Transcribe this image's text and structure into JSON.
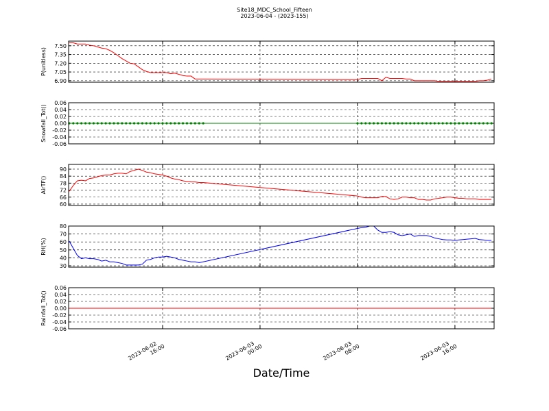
{
  "chart_data": {
    "type": "line",
    "title": "Site18_MDC_School_Fifteen",
    "subtitle": "2023-06-04 - (2023-155)",
    "xlabel": "Date/Time",
    "xlim": [
      "2023-06-02 08:17",
      "2023-06-03 19:13"
    ],
    "xticks": [
      {
        "value": "2023-06-02 16:00",
        "label": [
          "2023-06-02",
          "16:00"
        ]
      },
      {
        "value": "2023-06-03 00:00",
        "label": [
          "2023-06-03",
          "00:00"
        ]
      },
      {
        "value": "2023-06-03 08:00",
        "label": [
          "2023-06-03",
          "08:00"
        ]
      },
      {
        "value": "2023-06-03 16:00",
        "label": [
          "2023-06-03",
          "16:00"
        ]
      }
    ],
    "grid": true,
    "x": [
      "2023-06-02 08:20",
      "2023-06-02 08:40",
      "2023-06-02 09:00",
      "2023-06-02 09:20",
      "2023-06-02 09:40",
      "2023-06-02 10:00",
      "2023-06-02 10:20",
      "2023-06-02 10:40",
      "2023-06-02 11:00",
      "2023-06-02 11:20",
      "2023-06-02 11:40",
      "2023-06-02 12:00",
      "2023-06-02 12:20",
      "2023-06-02 12:40",
      "2023-06-02 13:00",
      "2023-06-02 13:20",
      "2023-06-02 13:40",
      "2023-06-02 14:00",
      "2023-06-02 14:20",
      "2023-06-02 14:40",
      "2023-06-02 15:00",
      "2023-06-02 15:20",
      "2023-06-02 15:40",
      "2023-06-02 16:00",
      "2023-06-02 16:20",
      "2023-06-02 16:40",
      "2023-06-02 17:00",
      "2023-06-02 17:20",
      "2023-06-02 17:40",
      "2023-06-02 18:00",
      "2023-06-02 18:20",
      "2023-06-02 18:40",
      "2023-06-02 19:00",
      "2023-06-02 19:20",
      "2023-06-03 08:00",
      "2023-06-03 08:20",
      "2023-06-03 08:40",
      "2023-06-03 09:00",
      "2023-06-03 09:20",
      "2023-06-03 09:40",
      "2023-06-03 10:00",
      "2023-06-03 10:20",
      "2023-06-03 10:40",
      "2023-06-03 11:00",
      "2023-06-03 11:20",
      "2023-06-03 11:40",
      "2023-06-03 12:00",
      "2023-06-03 12:20",
      "2023-06-03 12:40",
      "2023-06-03 13:00",
      "2023-06-03 13:20",
      "2023-06-03 13:40",
      "2023-06-03 14:00",
      "2023-06-03 14:20",
      "2023-06-03 14:40",
      "2023-06-03 15:00",
      "2023-06-03 15:20",
      "2023-06-03 15:40",
      "2023-06-03 16:00",
      "2023-06-03 16:20",
      "2023-06-03 16:40",
      "2023-06-03 17:00",
      "2023-06-03 17:20",
      "2023-06-03 17:40",
      "2023-06-03 18:00",
      "2023-06-03 18:20",
      "2023-06-03 18:40",
      "2023-06-03 19:00"
    ],
    "panels": [
      {
        "ylabel": "P(unitless)",
        "ylim": [
          6.875,
          7.58
        ],
        "yticks": [
          {
            "value": 6.9,
            "label": "6.90"
          },
          7.05,
          {
            "value": 7.2,
            "label": "7.20"
          },
          7.35,
          {
            "value": 7.5,
            "label": "7.50"
          }
        ],
        "series": [
          {
            "color": "#ff0000",
            "marker": null,
            "values": [
              7.55,
              7.55,
              7.53,
              7.53,
              7.53,
              7.51,
              7.5,
              7.48,
              7.46,
              7.45,
              7.42,
              7.38,
              7.33,
              7.28,
              7.24,
              7.2,
              7.19,
              7.14,
              7.09,
              7.06,
              7.04,
              7.04,
              7.04,
              7.04,
              7.04,
              7.02,
              7.03,
              7.01,
              6.99,
              6.98,
              6.98,
              6.93,
              6.93,
              6.93,
              6.92,
              6.94,
              6.94,
              6.94,
              6.94,
              6.94,
              6.9,
              6.96,
              6.94,
              6.94,
              6.94,
              6.94,
              6.93,
              6.93,
              6.9,
              6.9,
              6.9,
              6.9,
              6.9,
              6.9,
              6.89,
              6.89,
              6.89,
              6.89,
              6.89,
              6.89,
              6.89,
              6.89,
              6.89,
              6.89,
              6.9,
              6.9,
              6.91,
              6.93
            ]
          }
        ]
      },
      {
        "ylabel": "Snowfall_Tot()",
        "ylim": [
          -0.06,
          0.06
        ],
        "yticks": [
          -0.06,
          -0.04,
          -0.02,
          {
            "value": 0,
            "label": "0.00"
          },
          0.02,
          0.04,
          0.06
        ],
        "series": [
          {
            "color": "#008000",
            "marker": "o",
            "values": [
              0,
              0,
              0,
              0,
              0,
              0,
              0,
              0,
              0,
              0,
              0,
              0,
              0,
              0,
              0,
              0,
              0,
              0,
              0,
              0,
              0,
              0,
              0,
              0,
              0,
              0,
              0,
              0,
              0,
              0,
              0,
              0,
              0,
              0,
              0,
              0,
              0,
              0,
              0,
              0,
              0,
              0,
              0,
              0,
              0,
              0,
              0,
              0,
              0,
              0,
              0,
              0,
              0,
              0,
              0,
              0,
              0,
              0,
              0,
              0,
              0,
              0,
              0,
              0,
              0,
              0,
              0,
              0
            ]
          }
        ]
      },
      {
        "ylabel": "AirTF()",
        "ylim": [
          58.8,
          94.1
        ],
        "yticks": [
          60,
          66,
          72,
          78,
          84,
          90
        ],
        "series": [
          {
            "color": "#ff0000",
            "marker": null,
            "values": [
              71,
              76,
              80,
              80.5,
              80,
              82,
              82.5,
              83.5,
              84.5,
              85,
              85,
              86,
              86.5,
              86.5,
              86,
              88,
              89,
              90,
              89,
              87.5,
              87,
              86,
              85.5,
              85,
              84,
              82.5,
              81.5,
              81,
              80,
              79.5,
              79,
              79,
              78.5,
              78.5,
              67,
              66,
              65.5,
              65.5,
              65.5,
              65.5,
              66.5,
              66.5,
              64.5,
              64,
              64.5,
              66,
              66,
              65.5,
              65.5,
              64,
              64,
              63.5,
              63.5,
              64.5,
              65,
              65.5,
              66,
              66,
              65.5,
              65,
              65,
              64.5,
              64.5,
              64.5,
              64,
              64,
              64,
              64
            ]
          }
        ]
      },
      {
        "ylabel": "RH(%)",
        "ylim": [
          28.3,
          80
        ],
        "yticks": [
          30,
          40,
          50,
          60,
          70,
          80
        ],
        "series": [
          {
            "color": "#0000ff",
            "marker": null,
            "values": [
              61,
              52,
              43,
              39,
              40,
              39,
              39,
              38,
              36,
              37,
              35,
              35,
              34,
              33,
              31,
              31,
              31,
              31,
              32,
              37,
              38,
              40,
              41,
              41,
              42,
              41,
              40,
              38,
              37,
              36,
              35,
              35,
              34,
              35,
              77,
              78,
              78.5,
              80,
              80,
              75,
              72,
              72,
              73,
              72,
              69,
              68,
              69,
              70,
              67,
              68,
              68,
              68,
              67,
              65,
              64,
              63,
              62.5,
              62.5,
              62,
              62.5,
              63,
              63.5,
              64,
              64.5,
              63,
              62.5,
              62,
              62
            ]
          }
        ]
      },
      {
        "ylabel": "Rainfall_Tot()",
        "ylim": [
          -0.06,
          0.06
        ],
        "yticks": [
          -0.06,
          -0.04,
          -0.02,
          {
            "value": 0,
            "label": "0.00"
          },
          0.02,
          0.04,
          0.06
        ],
        "series": [
          {
            "color": "#ff0000",
            "marker": null,
            "values": [
              0,
              0,
              0,
              0,
              0,
              0,
              0,
              0,
              0,
              0,
              0,
              0,
              0,
              0,
              0,
              0,
              0,
              0,
              0,
              0,
              0,
              0,
              0,
              0,
              0,
              0,
              0,
              0,
              0,
              0,
              0,
              0,
              0,
              0,
              0,
              0,
              0,
              0,
              0,
              0,
              0,
              0,
              0,
              0,
              0,
              0,
              0,
              0,
              0,
              0,
              0,
              0,
              0,
              0,
              0,
              0,
              0,
              0,
              0,
              0,
              0,
              0,
              0,
              0,
              0,
              0,
              0,
              0
            ]
          }
        ]
      }
    ]
  }
}
